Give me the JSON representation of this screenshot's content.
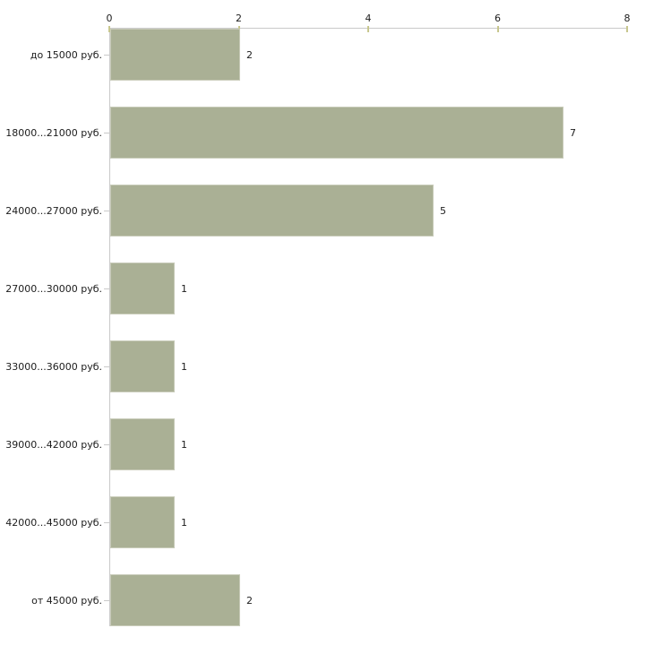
{
  "chart_data": {
    "type": "bar",
    "orientation": "horizontal",
    "title": "",
    "xlabel": "",
    "ylabel": "",
    "categories": [
      "до 15000 руб.",
      "18000...21000 руб.",
      "24000...27000 руб.",
      "27000...30000 руб.",
      "33000...36000 руб.",
      "39000...42000 руб.",
      "42000...45000 руб.",
      "от 45000 руб."
    ],
    "values": [
      2,
      7,
      5,
      1,
      1,
      1,
      1,
      2
    ],
    "value_labels": [
      "2",
      "7",
      "5",
      "1",
      "1",
      "1",
      "1",
      "2"
    ],
    "x_ticks": [
      0,
      2,
      4,
      6,
      8
    ],
    "xlim": [
      0,
      8
    ],
    "axis_position": "top",
    "grid": false,
    "legend_position": "none",
    "colors": {
      "bar_fill": "#aab095",
      "bar_border": "#c9ccba",
      "axis_line": "#c9c9c9",
      "x_tick_mark": "#c8c78e",
      "text": "#1c1c1c",
      "background": "#ffffff"
    }
  }
}
